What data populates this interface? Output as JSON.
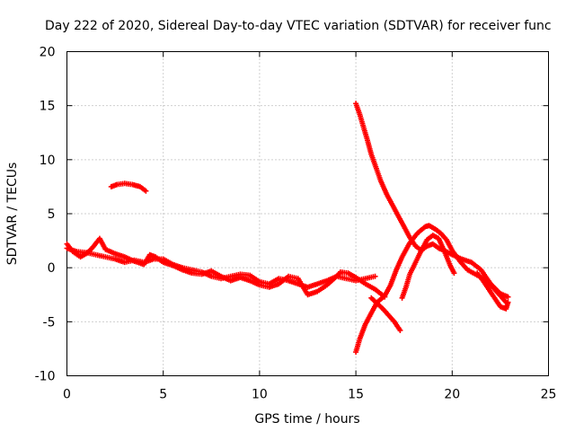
{
  "chart_data": {
    "type": "scatter",
    "title": "Day 222 of 2020, Sidereal Day-to-day VTEC variation (SDTVAR) for receiver func",
    "xlabel": "GPS time / hours",
    "ylabel": "SDTVAR / TECUs",
    "xlim": [
      0,
      25
    ],
    "ylim": [
      -10,
      20
    ],
    "xticks": [
      0,
      5,
      10,
      15,
      20,
      25
    ],
    "yticks": [
      -10,
      -5,
      0,
      5,
      10,
      15,
      20
    ],
    "xtick_labels": [
      "0",
      "5",
      "10",
      "15",
      "20",
      "25"
    ],
    "ytick_labels": [
      "-10",
      "-5",
      "0",
      "5",
      "10",
      "15",
      "20"
    ],
    "grid": true,
    "marker": "+",
    "series": [
      {
        "name": "track-1",
        "color": "#ff0000",
        "points": [
          [
            0,
            1.8
          ],
          [
            0.5,
            1.5
          ],
          [
            1,
            1.4
          ],
          [
            1.5,
            1.2
          ],
          [
            2,
            1.0
          ],
          [
            2.5,
            0.8
          ],
          [
            3,
            0.5
          ],
          [
            3.5,
            0.7
          ],
          [
            4,
            0.5
          ],
          [
            4.5,
            0.8
          ],
          [
            5,
            0.8
          ],
          [
            5.5,
            0.3
          ],
          [
            6,
            0.0
          ],
          [
            6.5,
            -0.2
          ],
          [
            7,
            -0.4
          ],
          [
            7.5,
            -0.8
          ],
          [
            8,
            -1.0
          ],
          [
            8.5,
            -0.8
          ],
          [
            9,
            -0.6
          ],
          [
            9.5,
            -0.7
          ],
          [
            10,
            -1.3
          ],
          [
            10.5,
            -1.5
          ],
          [
            11,
            -1.0
          ],
          [
            11.5,
            -1.2
          ],
          [
            12,
            -1.5
          ],
          [
            12.5,
            -1.8
          ],
          [
            13,
            -1.5
          ],
          [
            13.5,
            -1.2
          ],
          [
            14,
            -0.8
          ],
          [
            14.5,
            -1.0
          ],
          [
            15,
            -1.2
          ],
          [
            15.5,
            -1.0
          ],
          [
            16,
            -0.8
          ]
        ]
      },
      {
        "name": "track-2",
        "color": "#ff0000",
        "points": [
          [
            0,
            2.2
          ],
          [
            0.3,
            1.5
          ],
          [
            0.7,
            1.0
          ],
          [
            1,
            1.3
          ],
          [
            1.3,
            1.8
          ],
          [
            1.7,
            2.7
          ],
          [
            2,
            1.7
          ],
          [
            2.5,
            1.3
          ],
          [
            3,
            1.0
          ],
          [
            3.5,
            0.6
          ],
          [
            4,
            0.3
          ],
          [
            4.3,
            1.2
          ],
          [
            4.6,
            1.0
          ],
          [
            5,
            0.5
          ],
          [
            5.5,
            0.2
          ],
          [
            6,
            -0.2
          ],
          [
            6.5,
            -0.5
          ],
          [
            7,
            -0.6
          ],
          [
            7.5,
            -0.3
          ],
          [
            8,
            -0.8
          ],
          [
            8.5,
            -1.2
          ],
          [
            9,
            -0.9
          ],
          [
            9.5,
            -1.2
          ],
          [
            10,
            -1.6
          ],
          [
            10.5,
            -1.8
          ],
          [
            11,
            -1.5
          ],
          [
            11.5,
            -0.8
          ],
          [
            12,
            -1.0
          ],
          [
            12.5,
            -2.5
          ],
          [
            13,
            -2.2
          ],
          [
            13.5,
            -1.6
          ],
          [
            14,
            -0.8
          ],
          [
            14.2,
            -0.4
          ],
          [
            14.6,
            -0.5
          ],
          [
            15,
            -0.9
          ],
          [
            15.5,
            -1.5
          ],
          [
            16,
            -2.0
          ],
          [
            16.5,
            -2.7
          ]
        ]
      },
      {
        "name": "track-3",
        "color": "#ff0000",
        "points": [
          [
            2.3,
            7.5
          ],
          [
            2.6,
            7.7
          ],
          [
            3,
            7.8
          ],
          [
            3.4,
            7.7
          ],
          [
            3.8,
            7.5
          ],
          [
            4.1,
            7.1
          ]
        ]
      },
      {
        "name": "track-4",
        "color": "#ff0000",
        "points": [
          [
            15,
            15.2
          ],
          [
            15.2,
            14.2
          ],
          [
            15.4,
            13.0
          ],
          [
            15.6,
            11.8
          ],
          [
            15.8,
            10.5
          ],
          [
            16,
            9.5
          ],
          [
            16.3,
            8.0
          ],
          [
            16.6,
            6.8
          ],
          [
            16.9,
            5.8
          ],
          [
            17.2,
            4.8
          ],
          [
            17.5,
            3.8
          ],
          [
            17.8,
            2.8
          ],
          [
            18.1,
            2.0
          ],
          [
            18.4,
            1.6
          ],
          [
            18.7,
            2.0
          ],
          [
            19,
            2.2
          ],
          [
            19.3,
            1.8
          ],
          [
            19.6,
            1.6
          ],
          [
            20,
            1.2
          ],
          [
            20.5,
            0.8
          ],
          [
            21,
            0.5
          ],
          [
            21.5,
            -0.2
          ],
          [
            22,
            -1.5
          ],
          [
            22.5,
            -2.4
          ],
          [
            22.9,
            -2.7
          ]
        ]
      },
      {
        "name": "track-5",
        "color": "#ff0000",
        "points": [
          [
            15,
            -7.8
          ],
          [
            15.2,
            -6.6
          ],
          [
            15.5,
            -5.2
          ],
          [
            15.8,
            -4.2
          ],
          [
            16.1,
            -3.2
          ],
          [
            16.5,
            -2.6
          ],
          [
            16.8,
            -1.6
          ],
          [
            17.1,
            -0.2
          ],
          [
            17.4,
            1.0
          ],
          [
            17.8,
            2.3
          ],
          [
            18.2,
            3.2
          ],
          [
            18.6,
            3.8
          ],
          [
            18.8,
            3.9
          ],
          [
            19.1,
            3.6
          ],
          [
            19.4,
            3.2
          ],
          [
            19.7,
            2.6
          ],
          [
            20,
            1.6
          ],
          [
            20.4,
            0.6
          ],
          [
            20.8,
            -0.2
          ],
          [
            21.2,
            -0.6
          ],
          [
            21.6,
            -1.0
          ],
          [
            22,
            -1.6
          ],
          [
            22.4,
            -2.4
          ],
          [
            22.8,
            -3.2
          ]
        ]
      },
      {
        "name": "track-6",
        "color": "#ff0000",
        "points": [
          [
            15.8,
            -2.8
          ],
          [
            16.1,
            -3.3
          ],
          [
            16.4,
            -3.8
          ],
          [
            16.7,
            -4.4
          ],
          [
            17,
            -5.0
          ],
          [
            17.3,
            -5.8
          ]
        ]
      },
      {
        "name": "track-7",
        "color": "#ff0000",
        "points": [
          [
            17.4,
            -2.8
          ],
          [
            17.6,
            -1.8
          ],
          [
            17.8,
            -0.6
          ],
          [
            18.1,
            0.5
          ],
          [
            18.4,
            1.6
          ],
          [
            18.7,
            2.6
          ],
          [
            19,
            3.0
          ],
          [
            19.3,
            2.7
          ],
          [
            19.6,
            1.5
          ],
          [
            19.9,
            0.2
          ],
          [
            20.1,
            -0.5
          ]
        ]
      },
      {
        "name": "track-8",
        "color": "#ff0000",
        "points": [
          [
            21.3,
            -0.5
          ],
          [
            21.6,
            -1.2
          ],
          [
            21.9,
            -2.0
          ],
          [
            22.2,
            -2.8
          ],
          [
            22.5,
            -3.6
          ],
          [
            22.8,
            -3.8
          ],
          [
            22.9,
            -3.2
          ]
        ]
      }
    ]
  }
}
